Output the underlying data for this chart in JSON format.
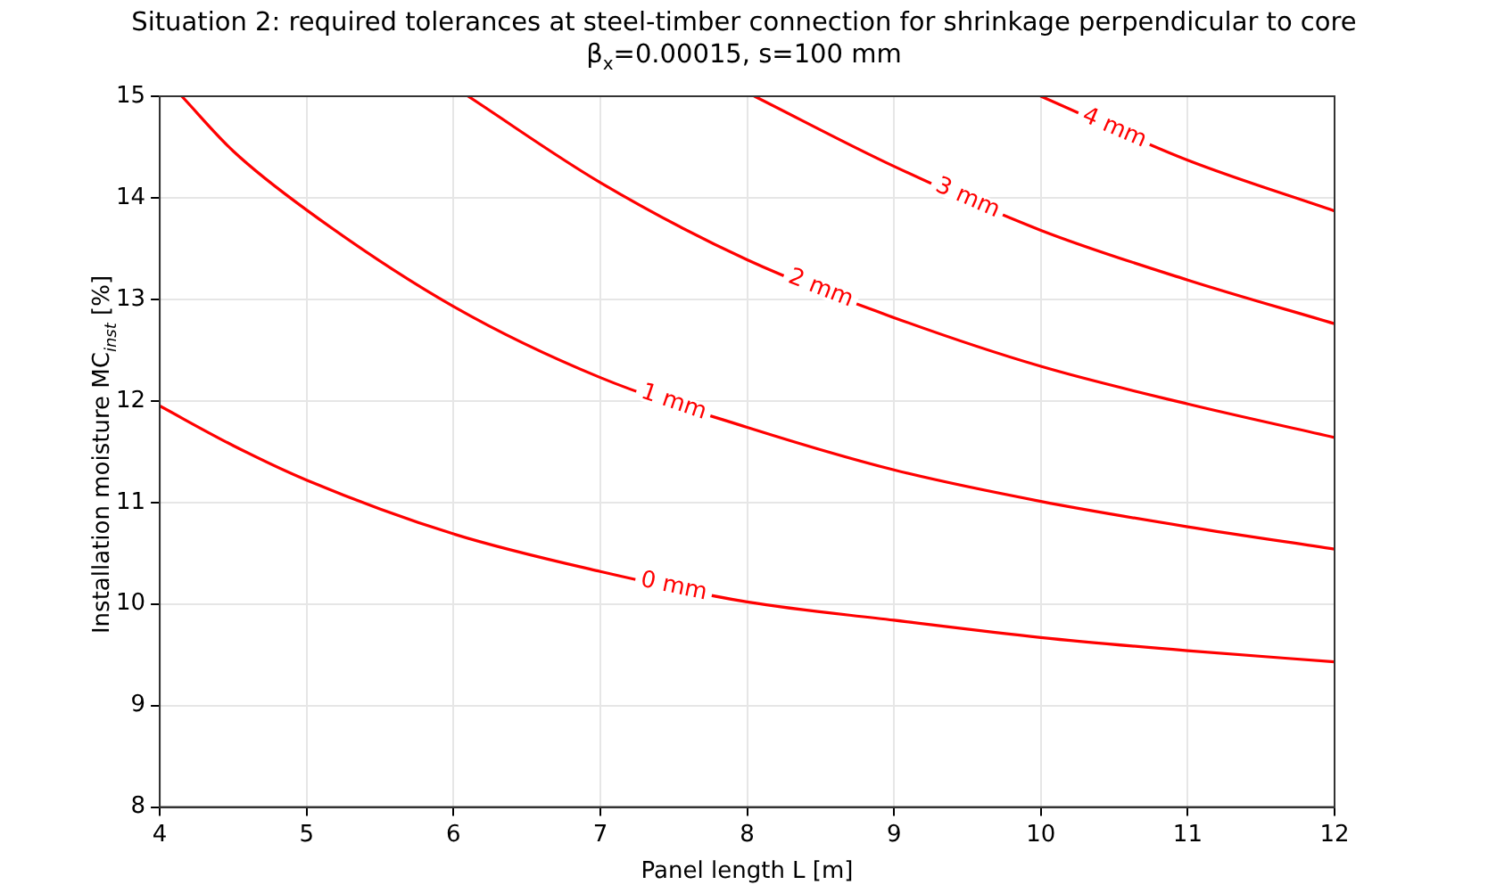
{
  "chart_data": {
    "type": "line",
    "title": "Situation 2: required tolerances at steel-timber connection for shrinkage perpendicular to core",
    "subtitle": "β$_{x}$=0.00015, s=100 mm",
    "xlabel": "Panel length L [m]",
    "ylabel": "Installation moisture MC$_{inst}$ [%]",
    "xlim": [
      4,
      12
    ],
    "ylim": [
      8,
      15
    ],
    "xticks": [
      4,
      5,
      6,
      7,
      8,
      9,
      10,
      11,
      12
    ],
    "yticks": [
      8,
      9,
      10,
      11,
      12,
      13,
      14,
      15
    ],
    "grid": true,
    "legend": false,
    "marker": "none",
    "line_style": "solid",
    "series": [
      {
        "name": "0 mm",
        "color": "#ff0000",
        "x": [
          4,
          4.5,
          5,
          6,
          7,
          8,
          9,
          10,
          11,
          12
        ],
        "values": [
          11.95,
          11.56,
          11.22,
          10.69,
          10.32,
          10.02,
          9.84,
          9.67,
          9.54,
          9.43
        ]
      },
      {
        "name": "1 mm",
        "color": "#ff0000",
        "x": [
          4.15,
          4.5,
          5,
          6,
          7,
          8,
          9,
          10,
          11,
          12
        ],
        "values": [
          15,
          14.46,
          13.88,
          12.93,
          12.23,
          11.74,
          11.32,
          11.01,
          10.76,
          10.54
        ]
      },
      {
        "name": "2 mm",
        "color": "#ff0000",
        "x": [
          6.1,
          7,
          8,
          9,
          10,
          11,
          12
        ],
        "values": [
          15,
          14.15,
          13.39,
          12.82,
          12.34,
          11.97,
          11.64
        ]
      },
      {
        "name": "3 mm",
        "color": "#ff0000",
        "x": [
          8.05,
          9,
          10,
          11,
          12
        ],
        "values": [
          15,
          14.31,
          13.68,
          13.19,
          12.76
        ]
      },
      {
        "name": "4 mm",
        "color": "#ff0000",
        "x": [
          10,
          11,
          12
        ],
        "values": [
          15,
          14.37,
          13.87
        ]
      }
    ]
  }
}
